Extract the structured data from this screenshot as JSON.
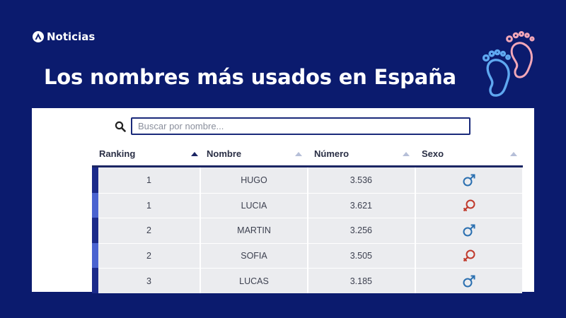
{
  "brand": {
    "name": "Noticias",
    "logo_icon": "antena3-logo-icon"
  },
  "headline": "Los nombres más usados en España",
  "decoration": {
    "icon": "baby-feet-icon",
    "colors": [
      "#f2a7b8",
      "#5fa8f0"
    ]
  },
  "search": {
    "placeholder": "Buscar por nombre..."
  },
  "table": {
    "columns": [
      {
        "label": "Ranking",
        "sort": "active"
      },
      {
        "label": "Nombre",
        "sort": "inactive"
      },
      {
        "label": "Número",
        "sort": "inactive"
      },
      {
        "label": "Sexo",
        "sort": "inactive"
      }
    ],
    "rows": [
      {
        "ranking": "1",
        "nombre": "HUGO",
        "numero": "3.536",
        "sexo": "male",
        "bar_color": "#1b2a8a"
      },
      {
        "ranking": "1",
        "nombre": "LUCIA",
        "numero": "3.621",
        "sexo": "female",
        "bar_color": "#4a63d0"
      },
      {
        "ranking": "2",
        "nombre": "MARTIN",
        "numero": "3.256",
        "sexo": "male",
        "bar_color": "#1b2a8a"
      },
      {
        "ranking": "2",
        "nombre": "SOFIA",
        "numero": "3.505",
        "sexo": "female",
        "bar_color": "#4a63d0"
      },
      {
        "ranking": "3",
        "nombre": "LUCAS",
        "numero": "3.185",
        "sexo": "male",
        "bar_color": "#1b2a8a"
      }
    ]
  },
  "colors": {
    "background": "#0b1b6e",
    "male_icon": "#2a6fb0",
    "female_icon": "#c0392b"
  }
}
